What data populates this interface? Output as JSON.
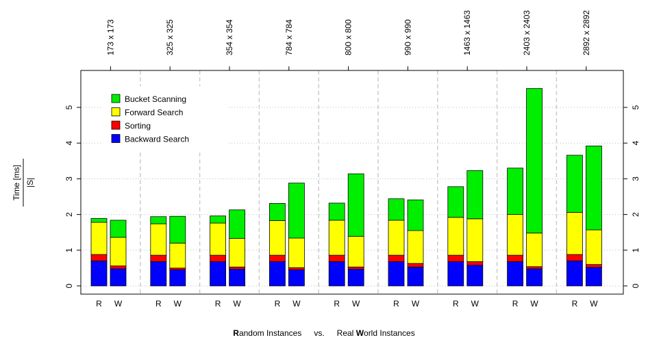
{
  "chart_data": {
    "type": "bar",
    "stacked": true,
    "groups": [
      "173 x 173",
      "325 x 325",
      "354 x 354",
      "784 x 784",
      "800 x 800",
      "990 x 990",
      "1463 x 1463",
      "2403 x 2403",
      "2892 x 2892"
    ],
    "bar_labels": [
      "R",
      "W"
    ],
    "ylabel_top": "Time [ms]",
    "ylabel_bottom": "|S|",
    "xlabel_parts": [
      {
        "text": "R",
        "bold": true
      },
      {
        "text": "andom Instances",
        "bold": false
      },
      {
        "text": "vs.",
        "bold": false
      },
      {
        "text": "Real ",
        "bold": false
      },
      {
        "text": "W",
        "bold": true
      },
      {
        "text": "orld Instances",
        "bold": false
      }
    ],
    "ylim": [
      0,
      5.6
    ],
    "yticks": [
      "0",
      "1",
      "2",
      "3",
      "4",
      "5"
    ],
    "grid": "vertical dashed separators between groups; horizontal dotted lines at ticks",
    "legend_position": "top-left",
    "series": [
      {
        "name": "Backward Search",
        "color": "#0000ff",
        "values": [
          [
            0.7,
            0.48
          ],
          [
            0.68,
            0.45
          ],
          [
            0.68,
            0.47
          ],
          [
            0.68,
            0.45
          ],
          [
            0.68,
            0.47
          ],
          [
            0.68,
            0.53
          ],
          [
            0.68,
            0.58
          ],
          [
            0.68,
            0.48
          ],
          [
            0.7,
            0.52
          ]
        ]
      },
      {
        "name": "Sorting",
        "color": "#ff0000",
        "values": [
          [
            0.18,
            0.08
          ],
          [
            0.18,
            0.05
          ],
          [
            0.18,
            0.06
          ],
          [
            0.18,
            0.06
          ],
          [
            0.18,
            0.06
          ],
          [
            0.18,
            0.1
          ],
          [
            0.18,
            0.1
          ],
          [
            0.18,
            0.06
          ],
          [
            0.18,
            0.08
          ]
        ]
      },
      {
        "name": "Forward Search",
        "color": "#ffff00",
        "values": [
          [
            0.9,
            0.8
          ],
          [
            0.88,
            0.7
          ],
          [
            0.9,
            0.8
          ],
          [
            0.97,
            0.83
          ],
          [
            0.98,
            0.86
          ],
          [
            0.98,
            0.92
          ],
          [
            1.06,
            1.2
          ],
          [
            1.14,
            0.94
          ],
          [
            1.18,
            0.97
          ]
        ]
      },
      {
        "name": "Bucket Scanning",
        "color": "#00ee00",
        "values": [
          [
            0.11,
            0.48
          ],
          [
            0.2,
            0.75
          ],
          [
            0.2,
            0.8
          ],
          [
            0.48,
            1.54
          ],
          [
            0.48,
            1.75
          ],
          [
            0.6,
            0.86
          ],
          [
            0.86,
            1.35
          ],
          [
            1.3,
            4.05
          ],
          [
            1.6,
            2.35
          ]
        ]
      }
    ]
  }
}
